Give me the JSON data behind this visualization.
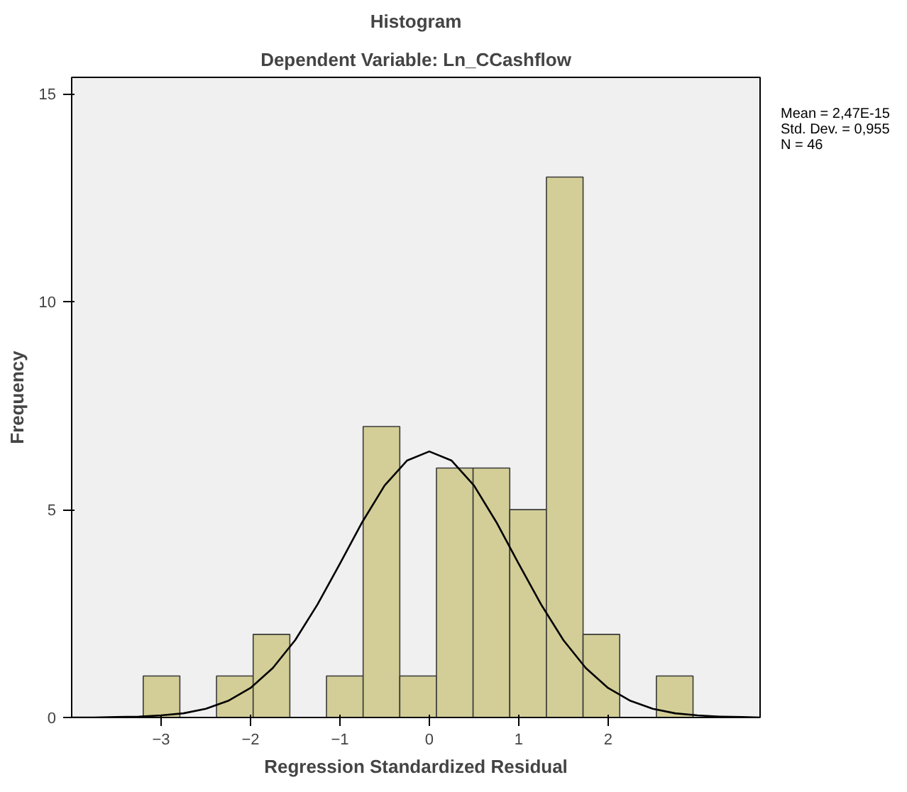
{
  "chart_data": {
    "type": "histogram",
    "title": "Histogram",
    "subtitle": "Dependent Variable: Ln_CCashflow",
    "xlabel": "Regression Standardized Residual",
    "ylabel": "Frequency",
    "bins": [
      -3.2,
      -2.79,
      -2.38,
      -1.97,
      -1.56,
      -1.15,
      -0.74,
      -0.33,
      0.08,
      0.49,
      0.9,
      1.31,
      1.72,
      2.13,
      2.54,
      2.95
    ],
    "values": [
      1,
      0,
      1,
      2,
      0,
      1,
      7,
      1,
      6,
      6,
      5,
      13,
      2,
      0,
      1
    ],
    "color": "#d3ce97",
    "series": [
      {
        "type": "line",
        "color": "#000000",
        "x": [
          -4,
          -3.75,
          -3.5,
          -3.25,
          -3,
          -2.75,
          -2.5,
          -2.25,
          -2,
          -1.75,
          -1.5,
          -1.25,
          -1,
          -0.75,
          -0.5,
          -0.25,
          0,
          0.25,
          0.5,
          0.75,
          1,
          1.25,
          1.5,
          1.75,
          2,
          2.25,
          2.5,
          2.75,
          3,
          3.25,
          3.5,
          3.7
        ],
        "values": [
          0,
          0,
          0.01,
          0.02,
          0.05,
          0.1,
          0.21,
          0.4,
          0.71,
          1.19,
          1.86,
          2.72,
          3.7,
          4.7,
          5.58,
          6.18,
          6.4,
          6.18,
          5.58,
          4.7,
          3.7,
          2.72,
          1.86,
          1.19,
          0.71,
          0.4,
          0.21,
          0.1,
          0.05,
          0.02,
          0.01,
          0
        ]
      }
    ],
    "xlim": [
      -4,
      3.7
    ],
    "ylim": [
      0,
      15.4
    ],
    "xticks": [
      -3,
      -2,
      -1,
      0,
      1,
      2
    ],
    "yticks": [
      0,
      5,
      10,
      15
    ],
    "grid": false,
    "annotations": [
      "Mean = 2,47E-15",
      "Std. Dev. = 0,955",
      "N = 46"
    ]
  }
}
